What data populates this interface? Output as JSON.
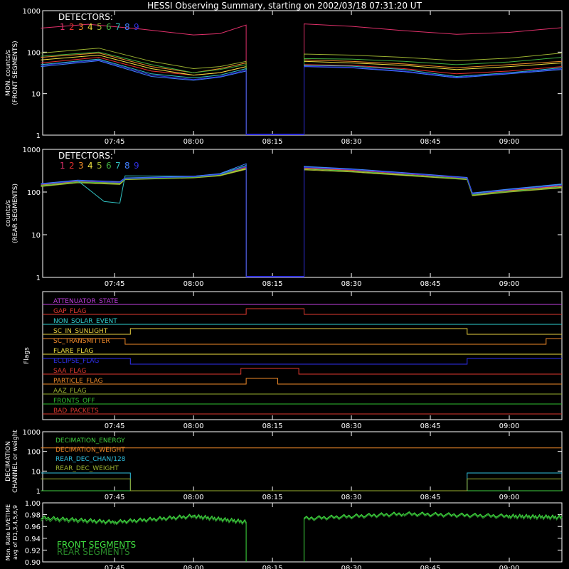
{
  "title": "HESSI Observing Summary, starting on 2002/03/18 07:31:20 UT",
  "time_axis": {
    "ticks": [
      "07:45",
      "08:00",
      "08:15",
      "08:30",
      "08:45",
      "09:00"
    ],
    "range": [
      "07:31:20",
      "09:10:00"
    ]
  },
  "colors": {
    "background": "#000000",
    "axis": "#ffffff",
    "detectors": [
      "#e0306a",
      "#e83030",
      "#f08a2a",
      "#f0e040",
      "#9ab030",
      "#40b040",
      "#30c0c0",
      "#4080ff",
      "#3030e0"
    ]
  },
  "chart_data": [
    {
      "type": "line",
      "name": "front",
      "ylabel": "MON. counts/s",
      "ylabel2": "(FRONT SEGMENTS)",
      "ylog": true,
      "ylim": [
        1,
        1000
      ],
      "yticks": [
        "1",
        "10",
        "100",
        "1000"
      ],
      "legend_title": "DETECTORS:",
      "legend_entries": [
        "1",
        "2",
        "3",
        "4",
        "5",
        "6",
        "7",
        "8",
        "9"
      ],
      "gap": [
        "08:10",
        "08:21"
      ],
      "series": [
        {
          "key": "d1",
          "color_index": 0,
          "x": [
            "07:31",
            "07:40",
            "07:50",
            "08:00",
            "08:05",
            "08:10",
            "08:21",
            "08:30",
            "08:40",
            "08:50",
            "09:00",
            "09:10"
          ],
          "y": [
            380,
            470,
            360,
            260,
            280,
            450,
            480,
            420,
            330,
            270,
            300,
            390
          ]
        },
        {
          "key": "d2",
          "color_index": 1,
          "x": [
            "07:31",
            "07:42",
            "07:52",
            "08:00",
            "08:05",
            "08:10",
            "08:21",
            "08:30",
            "08:40",
            "08:50",
            "09:00",
            "09:10"
          ],
          "y": [
            55,
            75,
            35,
            28,
            32,
            45,
            50,
            48,
            40,
            30,
            35,
            45
          ]
        },
        {
          "key": "d3",
          "color_index": 2,
          "x": [
            "07:31",
            "07:42",
            "07:52",
            "08:00",
            "08:05",
            "08:10",
            "08:21",
            "08:30",
            "08:40",
            "08:50",
            "09:00",
            "09:10"
          ],
          "y": [
            75,
            95,
            45,
            32,
            40,
            55,
            65,
            60,
            52,
            42,
            50,
            60
          ]
        },
        {
          "key": "d4",
          "color_index": 3,
          "x": [
            "07:31",
            "07:42",
            "07:52",
            "08:00",
            "08:05",
            "08:10",
            "08:21",
            "08:30",
            "08:40",
            "08:50",
            "09:00",
            "09:10"
          ],
          "y": [
            65,
            85,
            40,
            28,
            32,
            45,
            60,
            55,
            48,
            38,
            45,
            55
          ]
        },
        {
          "key": "d5",
          "color_index": 4,
          "x": [
            "07:31",
            "07:42",
            "07:52",
            "08:00",
            "08:05",
            "08:10",
            "08:21",
            "08:30",
            "08:40",
            "08:50",
            "09:00",
            "09:10"
          ],
          "y": [
            95,
            125,
            60,
            40,
            45,
            60,
            90,
            85,
            75,
            62,
            72,
            95
          ]
        },
        {
          "key": "d6",
          "color_index": 5,
          "x": [
            "07:31",
            "07:42",
            "07:52",
            "08:00",
            "08:05",
            "08:10",
            "08:21",
            "08:30",
            "08:40",
            "08:50",
            "09:00",
            "09:10"
          ],
          "y": [
            80,
            100,
            50,
            32,
            38,
            50,
            70,
            68,
            60,
            50,
            58,
            75
          ]
        },
        {
          "key": "d7",
          "color_index": 6,
          "x": [
            "07:31",
            "07:42",
            "07:52",
            "08:00",
            "08:05",
            "08:10",
            "08:21",
            "08:30",
            "08:40",
            "08:50",
            "09:00",
            "09:10"
          ],
          "y": [
            50,
            68,
            30,
            24,
            28,
            40,
            48,
            46,
            38,
            26,
            32,
            42
          ]
        },
        {
          "key": "d8",
          "color_index": 7,
          "x": [
            "07:31",
            "07:42",
            "07:52",
            "08:00",
            "08:05",
            "08:10",
            "08:21",
            "08:30",
            "08:40",
            "08:50",
            "09:00",
            "09:10"
          ],
          "y": [
            45,
            62,
            26,
            21,
            25,
            35,
            45,
            42,
            34,
            24,
            30,
            38
          ]
        },
        {
          "key": "d9",
          "color_index": 8,
          "x": [
            "07:31",
            "07:42",
            "07:52",
            "08:00",
            "08:05",
            "08:10",
            "08:21",
            "08:30",
            "08:40",
            "08:50",
            "09:00",
            "09:10"
          ],
          "y": [
            48,
            65,
            28,
            22,
            26,
            37,
            46,
            43,
            35,
            25,
            31,
            40
          ]
        }
      ]
    },
    {
      "type": "line",
      "name": "rear",
      "ylabel": "counts/s",
      "ylabel2": "(REAR SEGMENTS)",
      "ylog": true,
      "ylim": [
        1,
        1000
      ],
      "yticks": [
        "1",
        "10",
        "100",
        "1000"
      ],
      "legend_title": "DETECTORS:",
      "legend_entries": [
        "1",
        "2",
        "3",
        "4",
        "5",
        "6",
        "7",
        "8",
        "9"
      ],
      "gap": [
        "08:10",
        "08:21"
      ],
      "series": [
        {
          "key": "d1",
          "color_index": 0,
          "x": [
            "07:31",
            "07:38",
            "07:46",
            "07:47",
            "08:00",
            "08:05",
            "08:10",
            "08:21",
            "08:30",
            "08:40",
            "08:52",
            "08:53",
            "09:00",
            "09:10"
          ],
          "y": [
            150,
            180,
            170,
            210,
            230,
            260,
            380,
            370,
            330,
            270,
            210,
            90,
            110,
            140
          ]
        },
        {
          "key": "d2",
          "color_index": 1,
          "x": [
            "07:31",
            "07:38",
            "07:46",
            "07:47",
            "08:00",
            "08:05",
            "08:10",
            "08:21",
            "08:30",
            "08:40",
            "08:52",
            "08:53",
            "09:00",
            "09:10"
          ],
          "y": [
            140,
            175,
            160,
            200,
            220,
            250,
            370,
            360,
            320,
            260,
            200,
            85,
            105,
            130
          ]
        },
        {
          "key": "d3",
          "color_index": 2,
          "x": [
            "07:31",
            "07:38",
            "07:46",
            "07:47",
            "08:00",
            "08:05",
            "08:10",
            "08:21",
            "08:30",
            "08:40",
            "08:52",
            "08:53",
            "09:00",
            "09:10"
          ],
          "y": [
            145,
            178,
            165,
            205,
            225,
            255,
            360,
            355,
            315,
            255,
            205,
            88,
            108,
            135
          ]
        },
        {
          "key": "d4",
          "color_index": 3,
          "x": [
            "07:31",
            "07:38",
            "07:46",
            "07:47",
            "08:00",
            "08:05",
            "08:10",
            "08:21",
            "08:30",
            "08:40",
            "08:52",
            "08:53",
            "09:00",
            "09:10"
          ],
          "y": [
            138,
            170,
            158,
            198,
            218,
            245,
            350,
            345,
            305,
            250,
            198,
            84,
            102,
            128
          ]
        },
        {
          "key": "d5",
          "color_index": 4,
          "x": [
            "07:31",
            "07:38",
            "07:46",
            "07:47",
            "08:00",
            "08:05",
            "08:10",
            "08:21",
            "08:30",
            "08:40",
            "08:52",
            "08:53",
            "09:00",
            "09:10"
          ],
          "y": [
            135,
            165,
            150,
            195,
            215,
            240,
            340,
            330,
            295,
            245,
            195,
            82,
            100,
            125
          ]
        },
        {
          "key": "d6",
          "color_index": 5,
          "x": [
            "07:31",
            "07:38",
            "07:46",
            "07:47",
            "08:00",
            "08:05",
            "08:10",
            "08:21",
            "08:30",
            "08:40",
            "08:52",
            "08:53",
            "09:00",
            "09:10"
          ],
          "y": [
            142,
            172,
            162,
            202,
            222,
            252,
            365,
            350,
            310,
            258,
            202,
            86,
            104,
            132
          ]
        },
        {
          "key": "d7",
          "color_index": 6,
          "x": [
            "07:31",
            "07:38",
            "07:43",
            "07:46",
            "07:47",
            "08:00",
            "08:05",
            "08:10",
            "08:21",
            "08:30",
            "08:40",
            "08:52",
            "08:53",
            "09:00",
            "09:10"
          ],
          "y": [
            155,
            185,
            60,
            55,
            240,
            235,
            265,
            420,
            390,
            345,
            280,
            215,
            92,
            115,
            150
          ]
        },
        {
          "key": "d8",
          "color_index": 7,
          "x": [
            "07:31",
            "07:38",
            "07:46",
            "07:47",
            "08:00",
            "08:05",
            "08:10",
            "08:21",
            "08:30",
            "08:40",
            "08:52",
            "08:53",
            "09:00",
            "09:10"
          ],
          "y": [
            158,
            190,
            175,
            215,
            235,
            270,
            460,
            400,
            350,
            285,
            220,
            95,
            118,
            155
          ]
        },
        {
          "key": "d9",
          "color_index": 8,
          "x": [
            "07:31",
            "07:38",
            "07:46",
            "07:47",
            "08:00",
            "08:05",
            "08:10",
            "08:21",
            "08:30",
            "08:40",
            "08:52",
            "08:53",
            "09:00",
            "09:10"
          ],
          "y": [
            152,
            182,
            168,
            208,
            228,
            258,
            400,
            380,
            335,
            275,
            212,
            90,
            112,
            145
          ]
        }
      ]
    },
    {
      "type": "line",
      "name": "flags",
      "ylabel": "Flags",
      "rows": [
        {
          "label": "ATTENUATOR_STATE",
          "color": "#c040e0",
          "steps": [
            [
              "07:31",
              0
            ]
          ]
        },
        {
          "label": "GAP_FLAG",
          "color": "#e03a30",
          "steps": [
            [
              "07:31",
              0
            ],
            [
              "08:10",
              1
            ],
            [
              "08:21",
              0
            ]
          ]
        },
        {
          "label": "NON_SOLAR_EVENT",
          "color": "#30d0d0",
          "steps": [
            [
              "07:31",
              0
            ]
          ]
        },
        {
          "label": "SC_IN_SUNLIGHT",
          "color": "#e8d040",
          "steps": [
            [
              "07:31",
              0
            ],
            [
              "07:48",
              1
            ],
            [
              "08:52",
              0
            ]
          ]
        },
        {
          "label": "SC_TRANSMITTER",
          "color": "#f08a2a",
          "steps": [
            [
              "07:31",
              1
            ],
            [
              "07:47",
              0
            ],
            [
              "09:07",
              1
            ]
          ]
        },
        {
          "label": "FLARE_FLAG",
          "color": "#f0e040",
          "steps": [
            [
              "07:31",
              0
            ]
          ]
        },
        {
          "label": "ECLIPSE_FLAG",
          "color": "#3030f0",
          "steps": [
            [
              "07:31",
              1
            ],
            [
              "07:48",
              0
            ],
            [
              "08:52",
              1
            ]
          ]
        },
        {
          "label": "SAA_FLAG",
          "color": "#e03a30",
          "steps": [
            [
              "07:31",
              0
            ],
            [
              "08:09",
              1
            ],
            [
              "08:20",
              0
            ]
          ]
        },
        {
          "label": "PARTICLE_FLAG",
          "color": "#f08a2a",
          "steps": [
            [
              "07:31",
              0
            ],
            [
              "08:10",
              1
            ],
            [
              "08:16",
              0
            ]
          ]
        },
        {
          "label": "AAZ_FLAG",
          "color": "#9ab030",
          "steps": [
            [
              "07:31",
              0
            ]
          ]
        },
        {
          "label": "FRONTS_OFF",
          "color": "#30c030",
          "steps": [
            [
              "07:31",
              0
            ]
          ]
        },
        {
          "label": "BAD_PACKETS",
          "color": "#e03a30",
          "steps": [
            [
              "07:31",
              0
            ]
          ]
        }
      ]
    },
    {
      "type": "line",
      "name": "decimation",
      "ylabel": "DECIMATION",
      "ylabel2": "CHANNEL or weight",
      "ylog": true,
      "ylim": [
        1,
        1000
      ],
      "yticks": [
        "1",
        "10",
        "100",
        "1000"
      ],
      "series": [
        {
          "label": "DECIMATION_ENERGY",
          "color": "#40d040",
          "x": [
            "07:31",
            "09:10"
          ],
          "y": [
            0,
            0
          ]
        },
        {
          "label": "DECIMATION_WEIGHT",
          "color": "#f08a2a",
          "x": [
            "07:31",
            "09:10"
          ],
          "y": [
            150,
            150
          ]
        },
        {
          "label": "REAR_DEC_CHAN/128",
          "color": "#30c0e0",
          "x": [
            "07:31",
            "07:48",
            "07:48",
            "08:52",
            "08:52",
            "09:10"
          ],
          "y": [
            8,
            8,
            1,
            1,
            8,
            8
          ]
        },
        {
          "label": "REAR_DEC_WEIGHT",
          "color": "#9ab030",
          "x": [
            "07:31",
            "07:48",
            "07:48",
            "08:52",
            "08:52",
            "09:10"
          ],
          "y": [
            4,
            4,
            1,
            1,
            4,
            4
          ]
        }
      ]
    },
    {
      "type": "line",
      "name": "livetime",
      "ylabel": "Mon. Rate LIVETIME",
      "ylabel2": "avg of D1,3,4,5,6,9",
      "ylim": [
        0.9,
        1.0
      ],
      "yticks": [
        "0.90",
        "0.92",
        "0.94",
        "0.96",
        "0.98",
        "1.00"
      ],
      "gap": [
        "08:10",
        "08:21"
      ],
      "series": [
        {
          "label": "FRONT SEGMENTS",
          "color": "#40e040",
          "x": [
            "07:31",
            "07:45",
            "08:00",
            "08:10",
            "08:21",
            "08:40",
            "09:00",
            "09:10"
          ],
          "y": [
            0.975,
            0.968,
            0.978,
            0.968,
            0.974,
            0.982,
            0.978,
            0.976
          ]
        },
        {
          "label": "REAR SEGMENTS",
          "color": "#2a8a2a",
          "x": [
            "07:31",
            "07:45",
            "08:00",
            "08:10",
            "08:21",
            "08:40",
            "09:00",
            "09:10"
          ],
          "y": [
            0.972,
            0.966,
            0.976,
            0.966,
            0.972,
            0.98,
            0.976,
            0.974
          ]
        }
      ]
    }
  ]
}
